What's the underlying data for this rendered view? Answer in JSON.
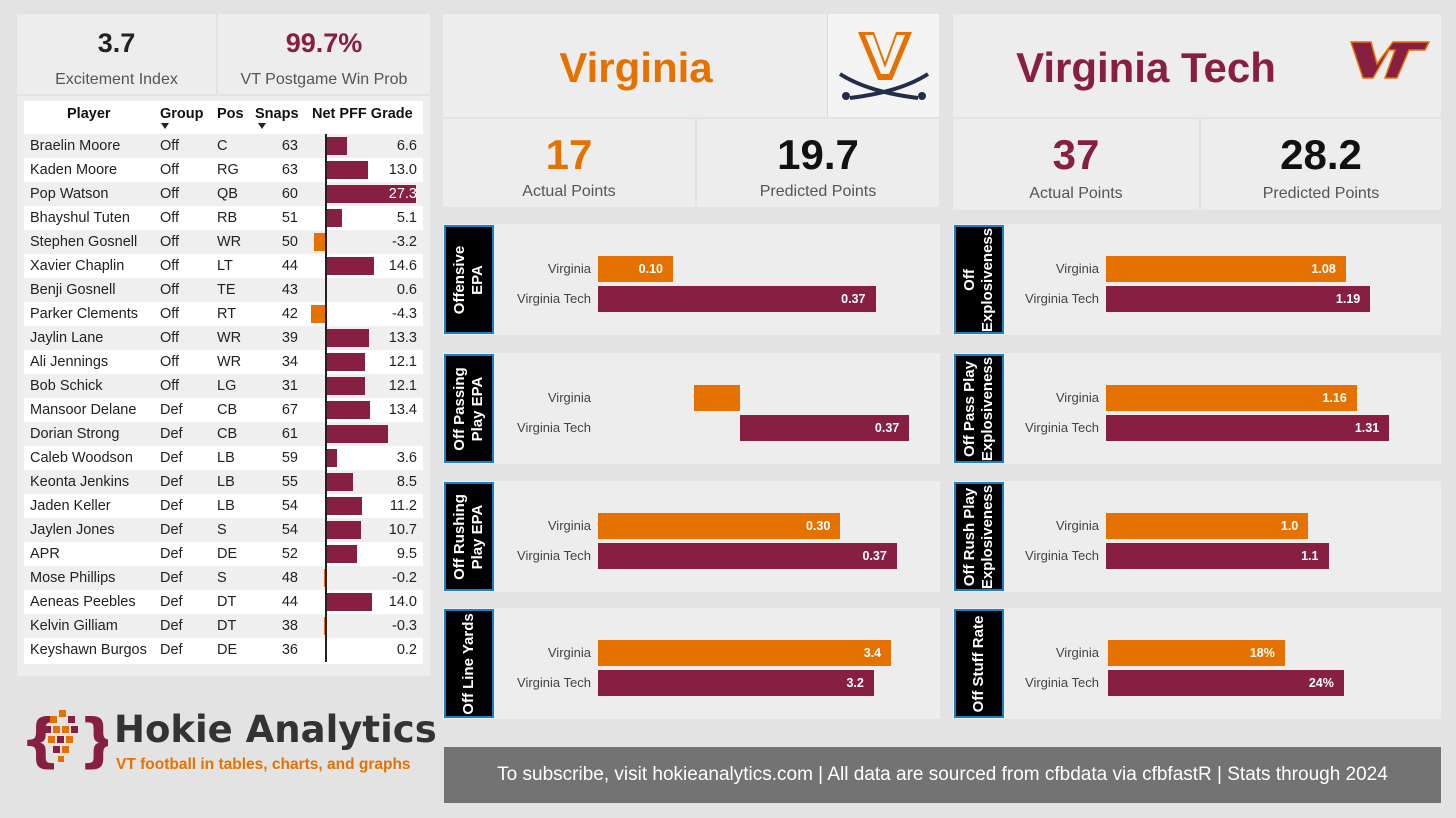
{
  "kpis": {
    "excitement": {
      "value": "3.7",
      "label": "Excitement Index"
    },
    "winprob": {
      "value": "99.7%",
      "label": "VT Postgame Win Prob"
    }
  },
  "table": {
    "headers": {
      "player": "Player",
      "group": "Group",
      "pos": "Pos",
      "snaps": "Snaps",
      "grade": "Net PFF Grade"
    },
    "rows": [
      {
        "player": "Braelin Moore",
        "group": "Off",
        "pos": "C",
        "snaps": "63",
        "grade": "6.6"
      },
      {
        "player": "Kaden Moore",
        "group": "Off",
        "pos": "RG",
        "snaps": "63",
        "grade": "13.0"
      },
      {
        "player": "Pop Watson",
        "group": "Off",
        "pos": "QB",
        "snaps": "60",
        "grade": "27.3"
      },
      {
        "player": "Bhayshul Tuten",
        "group": "Off",
        "pos": "RB",
        "snaps": "51",
        "grade": "5.1"
      },
      {
        "player": "Stephen Gosnell",
        "group": "Off",
        "pos": "WR",
        "snaps": "50",
        "grade": "-3.2"
      },
      {
        "player": "Xavier Chaplin",
        "group": "Off",
        "pos": "LT",
        "snaps": "44",
        "grade": "14.6"
      },
      {
        "player": "Benji Gosnell",
        "group": "Off",
        "pos": "TE",
        "snaps": "43",
        "grade": "0.6"
      },
      {
        "player": "Parker Clements",
        "group": "Off",
        "pos": "RT",
        "snaps": "42",
        "grade": "-4.3"
      },
      {
        "player": "Jaylin Lane",
        "group": "Off",
        "pos": "WR",
        "snaps": "39",
        "grade": "13.3"
      },
      {
        "player": "Ali Jennings",
        "group": "Off",
        "pos": "WR",
        "snaps": "34",
        "grade": "12.1"
      },
      {
        "player": "Bob Schick",
        "group": "Off",
        "pos": "LG",
        "snaps": "31",
        "grade": "12.1"
      },
      {
        "player": "Mansoor Delane",
        "group": "Def",
        "pos": "CB",
        "snaps": "67",
        "grade": "13.4"
      },
      {
        "player": "Dorian Strong",
        "group": "Def",
        "pos": "CB",
        "snaps": "61",
        "grade": "",
        "bar": 19.0
      },
      {
        "player": "Caleb Woodson",
        "group": "Def",
        "pos": "LB",
        "snaps": "59",
        "grade": "3.6"
      },
      {
        "player": "Keonta Jenkins",
        "group": "Def",
        "pos": "LB",
        "snaps": "55",
        "grade": "8.5"
      },
      {
        "player": "Jaden Keller",
        "group": "Def",
        "pos": "LB",
        "snaps": "54",
        "grade": "11.2"
      },
      {
        "player": "Jaylen Jones",
        "group": "Def",
        "pos": "S",
        "snaps": "54",
        "grade": "10.7"
      },
      {
        "player": "APR",
        "group": "Def",
        "pos": "DE",
        "snaps": "52",
        "grade": "9.5"
      },
      {
        "player": "Mose Phillips",
        "group": "Def",
        "pos": "S",
        "snaps": "48",
        "grade": "-0.2"
      },
      {
        "player": "Aeneas Peebles",
        "group": "Def",
        "pos": "DT",
        "snaps": "44",
        "grade": "14.0"
      },
      {
        "player": "Kelvin Gilliam",
        "group": "Def",
        "pos": "DT",
        "snaps": "38",
        "grade": "-0.3"
      },
      {
        "player": "Keyshawn Burgos",
        "group": "Def",
        "pos": "DE",
        "snaps": "36",
        "grade": "0.2"
      }
    ]
  },
  "teams": {
    "uva": {
      "name": "Virginia",
      "actual": "17",
      "actual_label": "Actual Points",
      "predicted": "19.7",
      "predicted_label": "Predicted Points"
    },
    "vt": {
      "name": "Virginia Tech",
      "actual": "37",
      "actual_label": "Actual Points",
      "predicted": "28.2",
      "predicted_label": "Predicted Points"
    }
  },
  "colors": {
    "uva_orange": "#e57200",
    "vt_maroon": "#861f41",
    "accent_blue": "#1d7fc1"
  },
  "chart_data": [
    {
      "type": "bar",
      "title": "Offensive EPA",
      "categories": [
        "Virginia",
        "Virginia Tech"
      ],
      "values": [
        0.1,
        0.37
      ],
      "labels": [
        "0.10",
        "0.37"
      ],
      "xlim": [
        0,
        0.42
      ]
    },
    {
      "type": "bar",
      "title": "Off Passing Play EPA",
      "categories": [
        "Virginia",
        "Virginia Tech"
      ],
      "values": [
        -0.1,
        0.37
      ],
      "labels": [
        "",
        "0.37"
      ],
      "xlim": [
        -0.31,
        0.4
      ]
    },
    {
      "type": "bar",
      "title": "Off Rushing Play EPA",
      "categories": [
        "Virginia",
        "Virginia Tech"
      ],
      "values": [
        0.3,
        0.37
      ],
      "labels": [
        "0.30",
        "0.37"
      ],
      "xlim": [
        0,
        0.39
      ]
    },
    {
      "type": "bar",
      "title": "Off Line Yards",
      "categories": [
        "Virginia",
        "Virginia Tech"
      ],
      "values": [
        3.4,
        3.2
      ],
      "labels": [
        "3.4",
        "3.2"
      ],
      "xlim": [
        0,
        3.48
      ]
    },
    {
      "type": "bar",
      "title": "Off Explosiveness",
      "categories": [
        "Virginia",
        "Virginia Tech"
      ],
      "values": [
        1.08,
        1.19
      ],
      "labels": [
        "1.08",
        "1.19"
      ],
      "xlim": [
        0,
        1.27
      ]
    },
    {
      "type": "bar",
      "title": "Off Pass Play Explosiveness",
      "categories": [
        "Virginia",
        "Virginia Tech"
      ],
      "values": [
        1.16,
        1.31
      ],
      "labels": [
        "1.16",
        "1.31"
      ],
      "xlim": [
        0,
        1.42
      ]
    },
    {
      "type": "bar",
      "title": "Off Rush Play Explosiveness",
      "categories": [
        "Virginia",
        "Virginia Tech"
      ],
      "values": [
        1.0,
        1.1
      ],
      "labels": [
        "1.0",
        "1.1"
      ],
      "xlim": [
        0,
        1.32
      ]
    },
    {
      "type": "bar",
      "title": "Off Stuff Rate",
      "categories": [
        "Virginia",
        "Virginia Tech"
      ],
      "values": [
        18,
        24
      ],
      "labels": [
        "18%",
        "24%"
      ],
      "xlim": [
        0,
        29
      ]
    }
  ],
  "brand": {
    "name": "Hokie Analytics",
    "tagline": "VT football in tables, charts, and graphs",
    "braces": "{ }"
  },
  "footer": {
    "text": "To subscribe, visit hokieanalytics.com | All data are sourced from cfbdata via cfbfastR | Stats through 2024"
  }
}
